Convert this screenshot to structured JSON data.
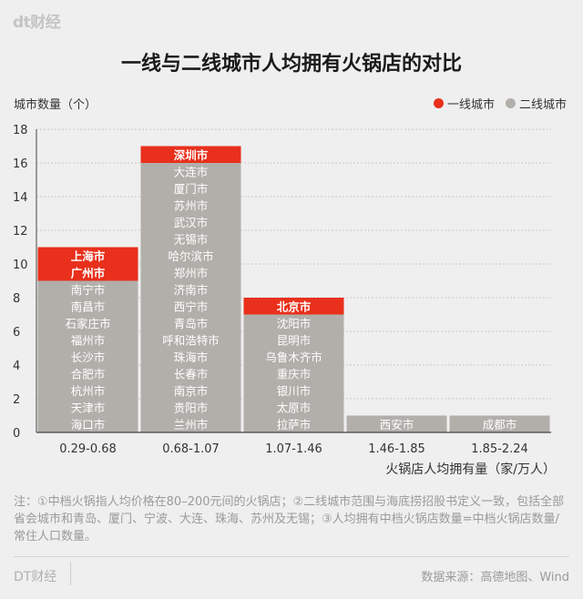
{
  "brand": "dt财经",
  "title": "一线与二线城市人均拥有火锅店的对比",
  "colors": {
    "tier1": "#e8301c",
    "tier2": "#b2afab",
    "axis": "#444444",
    "grid": "#c9c9c9"
  },
  "chart_data": {
    "type": "bar",
    "stacked": true,
    "ylabel": "城市数量（个）",
    "xlabel": "火锅店人均拥有量（家/万人）",
    "ylim": [
      0,
      18
    ],
    "yticks": [
      0,
      2,
      4,
      6,
      8,
      10,
      12,
      14,
      16,
      18
    ],
    "grid": true,
    "legend_position": "top-right",
    "categories": [
      "0.29-0.68",
      "0.68-1.07",
      "1.07-1.46",
      "1.46-1.85",
      "1.85-2.24"
    ],
    "series": [
      {
        "name": "一线城市",
        "values": [
          2,
          1,
          1,
          0,
          0
        ]
      },
      {
        "name": "二线城市",
        "values": [
          9,
          16,
          7,
          1,
          1
        ]
      }
    ],
    "bar_cities": [
      {
        "tier1": [
          "上海市",
          "广州市"
        ],
        "tier2": [
          "南宁市",
          "南昌市",
          "石家庄市",
          "福州市",
          "长沙市",
          "合肥市",
          "杭州市",
          "天津市",
          "海口市"
        ]
      },
      {
        "tier1": [
          "深圳市"
        ],
        "tier2": [
          "大连市",
          "厦门市",
          "苏州市",
          "武汉市",
          "无锡市",
          "哈尔滨市",
          "郑州市",
          "济南市",
          "西宁市",
          "青岛市",
          "呼和浩特市",
          "珠海市",
          "长春市",
          "南京市",
          "贵阳市",
          "兰州市"
        ]
      },
      {
        "tier1": [
          "北京市"
        ],
        "tier2": [
          "沈阳市",
          "昆明市",
          "乌鲁木齐市",
          "重庆市",
          "银川市",
          "太原市",
          "拉萨市"
        ]
      },
      {
        "tier1": [],
        "tier2": [
          "西安市"
        ]
      },
      {
        "tier1": [],
        "tier2": [
          "成都市"
        ]
      }
    ]
  },
  "note": "注：①中档火锅指人均价格在80–200元间的火锅店；②二线城市范围与海底捞招股书定义一致，包括全部省会城市和青岛、厦门、宁波、大连、珠海、苏州及无锡；③人均拥有中档火锅店数量=中档火锅店数量/常住人口数量。",
  "footer": {
    "brand": "DT财经",
    "source": "数据来源：高德地图、Wind"
  }
}
